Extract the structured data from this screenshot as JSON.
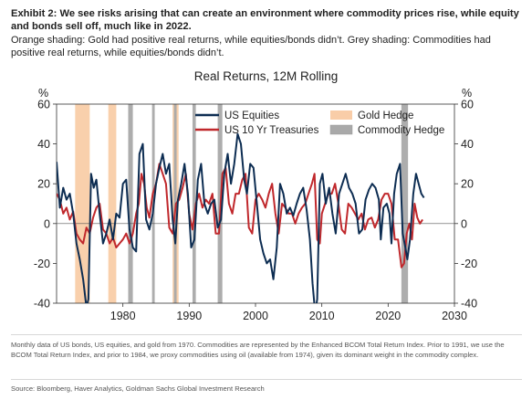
{
  "exhibit": {
    "headline": "Exhibit 2: We see risks arising that can create an environment where commodity prices rise, while equity and bonds sell off, much like in 2022.",
    "subheadline": "Orange shading: Gold had positive real returns, while equities/bonds didn’t. Grey shading: Commodities had positive real returns, while equities/bonds didn’t."
  },
  "footnote": "Monthly data of US bonds, US equities, and gold from 1970. Commodities are represented by the Enhanced BCOM Total Return Index. Prior to 1991, we use the BCOM Total Return Index, and prior to 1984, we proxy commodities using oil (available from 1974), given its dominant weight in the commodity complex.",
  "source": "Source: Bloomberg, Haver Analytics, Goldman Sachs Global Investment Research",
  "chart_data": {
    "type": "line",
    "title": "Real Returns, 12M Rolling",
    "ylabel_left": "%",
    "ylabel_right": "%",
    "xlim": [
      1970,
      2030
    ],
    "ylim": [
      -40,
      60
    ],
    "xticks": [
      1980,
      1990,
      2000,
      2010,
      2020,
      2030
    ],
    "yticks": [
      -40,
      -20,
      0,
      20,
      40,
      60
    ],
    "legend_position": "top-inside",
    "series": [
      {
        "name": "US Equities",
        "color": "#0d2d52",
        "x": [
          1970.0,
          1970.5,
          1971.0,
          1971.5,
          1972.0,
          1972.5,
          1973.0,
          1973.5,
          1974.0,
          1974.5,
          1974.8,
          1975.2,
          1975.6,
          1976.0,
          1976.5,
          1977.0,
          1977.5,
          1978.0,
          1978.5,
          1979.0,
          1979.5,
          1980.0,
          1980.5,
          1981.0,
          1981.5,
          1982.0,
          1982.5,
          1983.0,
          1983.5,
          1984.0,
          1984.5,
          1985.0,
          1985.5,
          1986.0,
          1986.5,
          1987.0,
          1987.5,
          1987.9,
          1988.3,
          1988.8,
          1989.3,
          1989.8,
          1990.3,
          1990.8,
          1991.3,
          1991.8,
          1992.3,
          1992.8,
          1993.3,
          1993.8,
          1994.3,
          1994.8,
          1995.3,
          1995.8,
          1996.3,
          1996.8,
          1997.3,
          1997.8,
          1998.3,
          1998.7,
          1999.2,
          1999.7,
          2000.2,
          2000.7,
          2001.2,
          2001.7,
          2002.2,
          2002.7,
          2003.2,
          2003.7,
          2004.2,
          2004.7,
          2005.2,
          2005.7,
          2006.2,
          2006.7,
          2007.2,
          2007.7,
          2008.2,
          2008.6,
          2009.0,
          2009.3,
          2009.7,
          2010.1,
          2010.6,
          2011.1,
          2011.6,
          2012.1,
          2012.6,
          2013.1,
          2013.6,
          2014.1,
          2014.6,
          2015.1,
          2015.6,
          2016.1,
          2016.6,
          2017.1,
          2017.6,
          2018.1,
          2018.6,
          2018.9,
          2019.3,
          2019.8,
          2020.2,
          2020.5,
          2020.9,
          2021.3,
          2021.8,
          2022.2,
          2022.6,
          2022.9,
          2023.3,
          2023.8,
          2024.2,
          2024.6,
          2025.0,
          2025.4
        ],
        "y": [
          31,
          8,
          18,
          12,
          15,
          5,
          -10,
          -18,
          -28,
          -42,
          -38,
          25,
          18,
          22,
          5,
          -10,
          -5,
          2,
          -8,
          5,
          3,
          20,
          22,
          -3,
          -12,
          -14,
          35,
          40,
          2,
          -3,
          5,
          20,
          28,
          35,
          25,
          30,
          2,
          -10,
          12,
          20,
          30,
          15,
          -12,
          -8,
          22,
          30,
          10,
          5,
          10,
          12,
          -2,
          2,
          25,
          35,
          20,
          30,
          45,
          40,
          22,
          15,
          30,
          28,
          10,
          -8,
          -15,
          -20,
          -18,
          -28,
          -12,
          20,
          15,
          5,
          8,
          4,
          10,
          15,
          18,
          7,
          -8,
          -30,
          -45,
          -38,
          20,
          25,
          10,
          18,
          5,
          -5,
          15,
          20,
          25,
          18,
          15,
          10,
          -5,
          -3,
          12,
          17,
          20,
          18,
          12,
          -8,
          8,
          10,
          5,
          -10,
          15,
          25,
          30,
          -5,
          -12,
          -18,
          -8,
          15,
          25,
          20,
          15,
          13
        ]
      },
      {
        "name": "US 10 Yr Treasuries",
        "color": "#c0282c",
        "x": [
          1970.0,
          1970.5,
          1971.0,
          1971.5,
          1972.0,
          1972.5,
          1973.0,
          1973.5,
          1974.0,
          1974.5,
          1975.0,
          1975.5,
          1976.0,
          1976.5,
          1977.0,
          1977.5,
          1978.0,
          1978.5,
          1979.0,
          1979.5,
          1980.0,
          1980.5,
          1981.0,
          1981.5,
          1982.0,
          1982.4,
          1982.8,
          1983.2,
          1983.6,
          1984.0,
          1984.5,
          1985.0,
          1985.5,
          1986.0,
          1986.5,
          1987.0,
          1987.5,
          1988.0,
          1988.5,
          1989.0,
          1989.5,
          1990.0,
          1990.5,
          1991.0,
          1991.5,
          1992.0,
          1992.5,
          1993.0,
          1993.5,
          1994.0,
          1994.5,
          1995.0,
          1995.5,
          1996.0,
          1996.5,
          1997.0,
          1997.5,
          1998.0,
          1998.5,
          1999.0,
          1999.5,
          2000.0,
          2000.5,
          2001.0,
          2001.5,
          2002.0,
          2002.5,
          2003.0,
          2003.5,
          2004.0,
          2004.5,
          2005.0,
          2005.5,
          2006.0,
          2006.5,
          2007.0,
          2007.5,
          2008.0,
          2008.5,
          2008.9,
          2009.3,
          2009.7,
          2010.0,
          2010.5,
          2011.0,
          2011.5,
          2012.0,
          2012.5,
          2013.0,
          2013.5,
          2014.0,
          2014.5,
          2015.0,
          2015.5,
          2016.0,
          2016.5,
          2017.0,
          2017.5,
          2018.0,
          2018.5,
          2019.0,
          2019.5,
          2020.0,
          2020.5,
          2021.0,
          2021.5,
          2022.0,
          2022.4,
          2022.8,
          2023.2,
          2023.6,
          2024.0,
          2024.4,
          2024.8,
          2025.2
        ],
        "y": [
          15,
          12,
          5,
          8,
          2,
          6,
          -5,
          -8,
          -10,
          -2,
          -5,
          3,
          8,
          10,
          -3,
          -5,
          -10,
          -7,
          -12,
          -10,
          -8,
          -5,
          -10,
          -5,
          5,
          10,
          25,
          20,
          8,
          3,
          15,
          20,
          30,
          25,
          20,
          -2,
          -5,
          10,
          12,
          18,
          25,
          5,
          -3,
          10,
          15,
          8,
          12,
          10,
          15,
          -5,
          -5,
          25,
          28,
          10,
          5,
          15,
          15,
          22,
          25,
          -2,
          -5,
          12,
          15,
          12,
          8,
          15,
          20,
          5,
          -5,
          10,
          8,
          5,
          5,
          0,
          5,
          8,
          10,
          15,
          20,
          25,
          -8,
          -10,
          5,
          10,
          15,
          15,
          20,
          10,
          -3,
          -5,
          10,
          8,
          5,
          2,
          5,
          -3,
          2,
          3,
          -2,
          2,
          12,
          15,
          15,
          10,
          -8,
          -8,
          -22,
          -20,
          -5,
          0,
          -8,
          10,
          3,
          0,
          2
        ]
      }
    ],
    "shaded_regions": [
      {
        "name": "Gold Hedge",
        "color": "#f9cda8",
        "ranges": [
          [
            1972.8,
            1975.0
          ],
          [
            1977.8,
            1979.0
          ],
          [
            1987.5,
            1988.4
          ]
        ]
      },
      {
        "name": "Commodity Hedge",
        "color": "#a9a9a9",
        "ranges": [
          [
            1980.8,
            1981.5
          ],
          [
            1984.4,
            1984.8
          ],
          [
            1987.7,
            1988.1
          ],
          [
            1990.5,
            1991.0
          ],
          [
            1994.3,
            1995.0
          ],
          [
            2022.0,
            2023.0
          ]
        ]
      }
    ]
  }
}
